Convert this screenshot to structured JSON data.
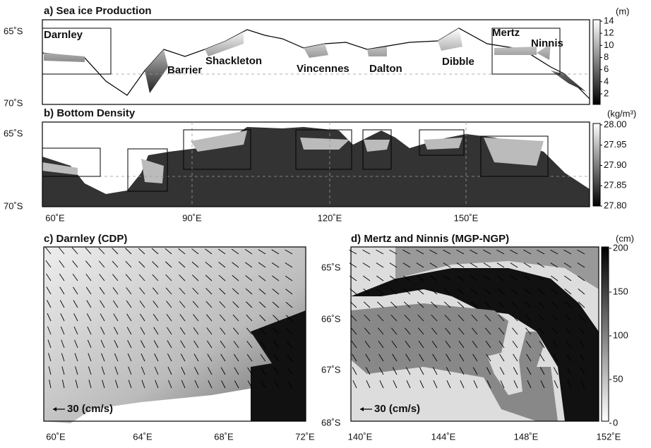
{
  "panels": [
    {
      "title": "a) Sea ice Production",
      "lat_labels": [
        "65˚S",
        "70˚S"
      ],
      "colorbar": {
        "unit": "(m)",
        "ticks": [
          "14",
          "12",
          "10",
          "8",
          "6",
          "4",
          "2"
        ]
      },
      "region_labels": [
        "Darnley",
        "Barrier",
        "Shackleton",
        "Vincennes",
        "Dalton",
        "Dibble",
        "Mertz",
        "Ninnis"
      ]
    },
    {
      "title": "b) Bottom Density",
      "lat_labels": [
        "65˚S",
        "70˚S"
      ],
      "lon_labels": [
        "60˚E",
        "90˚E",
        "120˚E",
        "150˚E"
      ],
      "colorbar": {
        "unit": "(kg/m³)",
        "ticks": [
          "28.00",
          "27.95",
          "27.90",
          "27.85",
          "27.80"
        ]
      }
    },
    {
      "title": "c) Darnley (CDP)",
      "lat_labels": [
        "65˚S",
        "66˚S",
        "67˚S",
        "68˚S"
      ],
      "lon_labels": [
        "60˚E",
        "64˚E",
        "68˚E",
        "72˚E"
      ],
      "reference_arrow": "30 (cm/s)"
    },
    {
      "title": "d) Mertz and Ninnis (MGP-NGP)",
      "lon_labels": [
        "140˚E",
        "144˚E",
        "148˚E",
        "152˚E"
      ],
      "reference_arrow": "30 (cm/s)",
      "colorbar": {
        "unit": "(cm)",
        "ticks": [
          "200",
          "150",
          "100",
          "50",
          "0"
        ]
      }
    }
  ]
}
